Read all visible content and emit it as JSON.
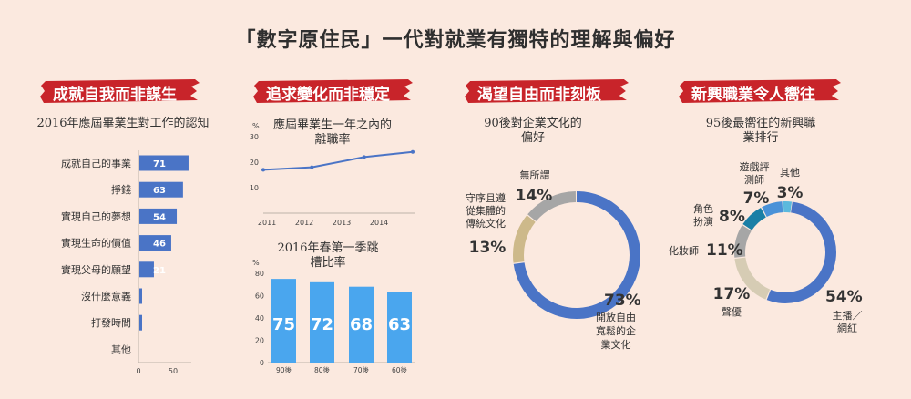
{
  "page_title": "「數字原住民」一代對就業有獨特的理解與偏好",
  "colors": {
    "banner": "#c8242a",
    "bar": "#4a74c6",
    "light_bar": "#4aa6ee",
    "line": "#4a74c6",
    "donut_gray": "#a6a6a6",
    "donut_tan": "#cdb98a"
  },
  "sections": [
    {
      "banner": "成就自我而非謀生"
    },
    {
      "banner": "追求變化而非穩定"
    },
    {
      "banner": "渴望自由而非刻板"
    },
    {
      "banner": "新興職業令人嚮往"
    }
  ],
  "chart_data": [
    {
      "type": "bar",
      "orientation": "horizontal",
      "title": "2016年應屆畢業生對工作的認知",
      "categories": [
        "成就自己的事業",
        "掙錢",
        "實現自己的夢想",
        "實現生命的價值",
        "實現父母的願望",
        "沒什麼意義",
        "打發時間",
        "其他"
      ],
      "values": [
        71,
        63,
        54,
        46,
        21,
        2,
        2,
        0
      ],
      "data_labels": [
        "71",
        "63",
        "54",
        "46",
        "21",
        "",
        "",
        ""
      ],
      "xticks": [
        "0",
        "50"
      ],
      "xlim": [
        0,
        100
      ]
    },
    {
      "type": "line",
      "title": "應屆畢業生一年之內的離職率",
      "ylabel": "%",
      "x": [
        2011,
        2012,
        2013,
        2014
      ],
      "series": [
        {
          "values": [
            17,
            18,
            22,
            24
          ]
        }
      ],
      "points": [
        [
          2010.9,
          17
        ],
        [
          2012.2,
          18
        ],
        [
          2013.6,
          22
        ],
        [
          2014.9,
          24
        ]
      ],
      "xticks": [
        "2011",
        "2012",
        "2013",
        "2014"
      ],
      "yticks": [
        "10",
        "20",
        "30"
      ],
      "ylim": [
        0,
        30
      ]
    },
    {
      "type": "bar",
      "title": "2016年春第一季跳槽比率",
      "ylabel": "%",
      "categories": [
        "90後",
        "80後",
        "70後",
        "60後"
      ],
      "values": [
        75,
        72,
        68,
        63
      ],
      "data_labels": [
        "75",
        "72",
        "68",
        "63"
      ],
      "yticks": [
        "0",
        "20",
        "40",
        "60",
        "80"
      ],
      "ylim": [
        0,
        80
      ]
    },
    {
      "type": "pie",
      "style": "donut",
      "title": "90後對企業文化的偏好",
      "slices": [
        {
          "label": "開放自由寬鬆的企業文化",
          "value": 73,
          "pct": "73%",
          "color": "#4a74c6"
        },
        {
          "label": "守序且遵從集體的傳統文化",
          "value": 13,
          "pct": "13%",
          "color": "#cdb98a"
        },
        {
          "label": "無所謂",
          "value": 14,
          "pct": "14%",
          "color": "#a6a6a6"
        }
      ]
    },
    {
      "type": "pie",
      "style": "donut",
      "title": "95後最嚮往的新興職業排行",
      "slices": [
        {
          "label": "主播／網紅",
          "value": 54,
          "pct": "54%",
          "color": "#4a74c6"
        },
        {
          "label": "聲優",
          "value": 17,
          "pct": "17%",
          "color": "#d6ccb4"
        },
        {
          "label": "化妝師",
          "value": 11,
          "pct": "11%",
          "color": "#a6a6a6"
        },
        {
          "label": "角色扮演",
          "value": 8,
          "pct": "8%",
          "color": "#1a7fa6"
        },
        {
          "label": "遊戲評測師",
          "value": 7,
          "pct": "7%",
          "color": "#4a92d8"
        },
        {
          "label": "其他",
          "value": 3,
          "pct": "3%",
          "color": "#5bb9dd"
        }
      ]
    }
  ]
}
